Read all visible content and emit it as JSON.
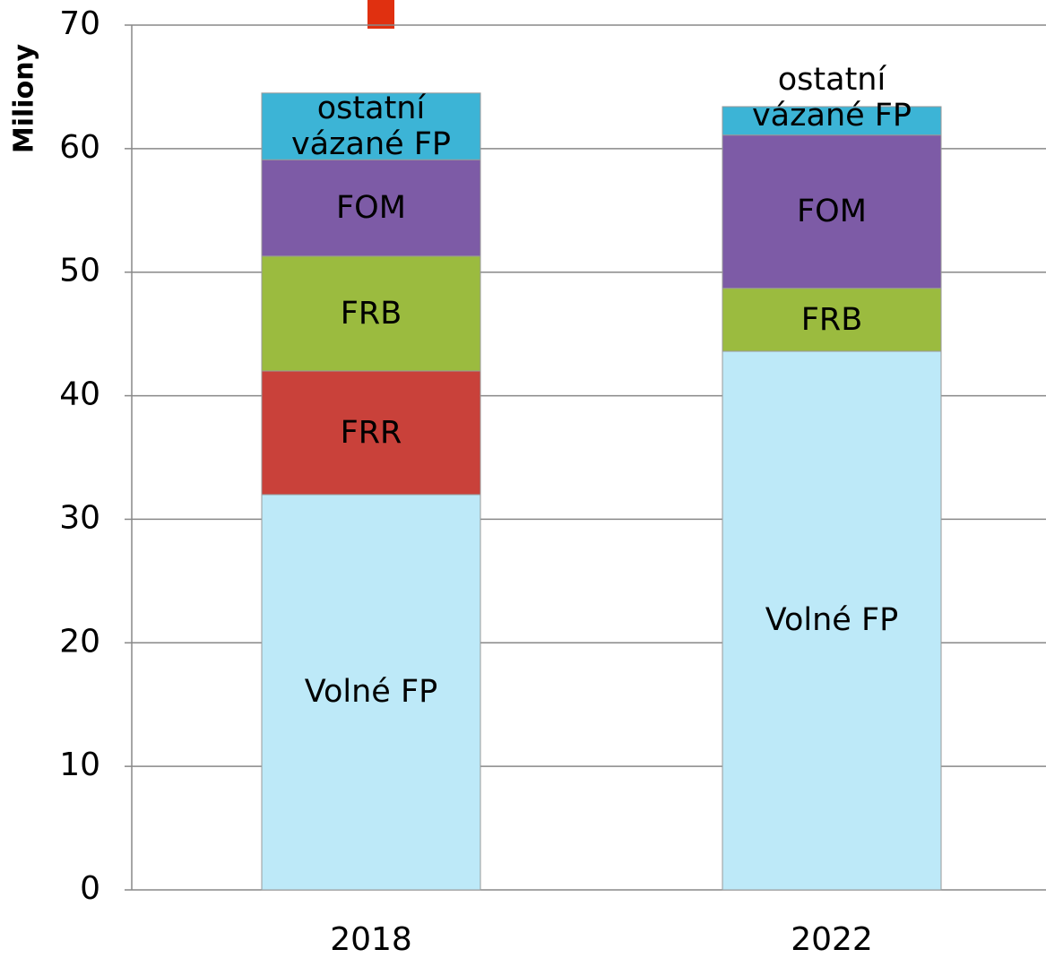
{
  "chart_data": {
    "type": "stacked_bar",
    "y_label": "Miliony",
    "categories": [
      "2018",
      "2022"
    ],
    "series": [
      {
        "name": "Volné FP",
        "color": "#bde9f8",
        "values": [
          32.0,
          43.6
        ]
      },
      {
        "name": "FRR",
        "color": "#c9413a",
        "values": [
          10.0,
          null
        ]
      },
      {
        "name": "FRB",
        "color": "#9bbb3f",
        "values": [
          9.3,
          5.1
        ]
      },
      {
        "name": "FOM",
        "color": "#7d5ba6",
        "values": [
          7.8,
          12.4
        ]
      },
      {
        "name": "ostatní vázané FP",
        "color": "#3cb4d6",
        "values": [
          5.4,
          2.3
        ]
      }
    ],
    "ylim": [
      0,
      70
    ],
    "yticks": [
      0,
      10,
      20,
      30,
      40,
      50,
      60,
      70
    ],
    "grid": true
  }
}
